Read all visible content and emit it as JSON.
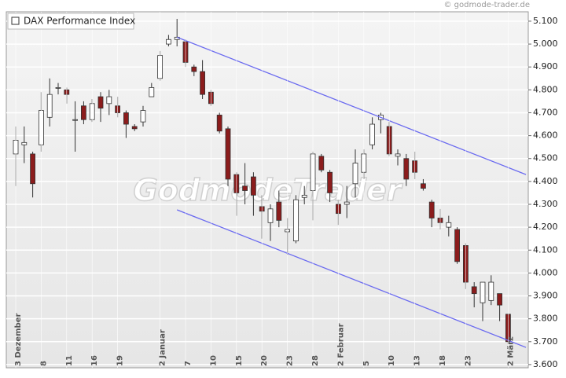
{
  "chart_data": {
    "type": "candlestick",
    "title": "DAX Performance Index",
    "source": "© godmode-trader.de",
    "watermark": "GodmodeTrader",
    "categories": [
      "3 Dezember",
      null,
      null,
      "8",
      null,
      null,
      "11",
      null,
      null,
      "16",
      null,
      null,
      "19",
      null,
      null,
      null,
      null,
      "2 Januar",
      null,
      null,
      "7",
      null,
      null,
      "10",
      null,
      null,
      "15",
      null,
      null,
      "20",
      null,
      null,
      "23",
      null,
      null,
      "28",
      null,
      null,
      "2 Februar",
      null,
      null,
      "5",
      null,
      null,
      "10",
      null,
      null,
      "13",
      null,
      null,
      "18",
      null,
      null,
      "23",
      null,
      null,
      null,
      null,
      "2 März"
    ],
    "open": [
      4520,
      4560,
      4520,
      4560,
      4680,
      4810,
      4800,
      4670,
      4730,
      4670,
      4770,
      4740,
      4730,
      4700,
      4640,
      4660,
      4770,
      4850,
      5000,
      5020,
      5010,
      4900,
      4880,
      4790,
      4690,
      4630,
      4430,
      4380,
      4420,
      4290,
      4220,
      4310,
      4180,
      4140,
      4330,
      4360,
      4510,
      4440,
      4300,
      4300,
      4390,
      4440,
      4560,
      4670,
      4640,
      4510,
      4500,
      4490,
      4390,
      4310,
      4240,
      4200,
      4190,
      4120,
      3940,
      3870,
      3880,
      3910,
      3820
    ],
    "high": [
      4640,
      4640,
      4530,
      4790,
      4850,
      4830,
      4810,
      4750,
      4750,
      4760,
      4790,
      4800,
      4770,
      4710,
      4650,
      4730,
      4830,
      4970,
      5040,
      5110,
      5020,
      4910,
      4930,
      4800,
      4700,
      4640,
      4440,
      4480,
      4440,
      4340,
      4300,
      4360,
      4240,
      4340,
      4380,
      4530,
      4520,
      4450,
      4320,
      4380,
      4540,
      4540,
      4680,
      4700,
      4660,
      4540,
      4520,
      4530,
      4410,
      4320,
      4280,
      4250,
      4200,
      4130,
      3960,
      3960,
      3990,
      3910,
      3820
    ],
    "low": [
      4380,
      4480,
      4330,
      4530,
      4640,
      4780,
      4740,
      4530,
      4650,
      4660,
      4660,
      4690,
      4680,
      4590,
      4620,
      4640,
      4770,
      4840,
      4990,
      4990,
      4900,
      4860,
      4760,
      4730,
      4610,
      4380,
      4250,
      4300,
      4250,
      4150,
      4140,
      4200,
      4080,
      4130,
      4300,
      4230,
      4440,
      4310,
      4210,
      4240,
      4330,
      4410,
      4540,
      4610,
      4510,
      4470,
      4380,
      4410,
      4360,
      4200,
      4190,
      4160,
      4040,
      3930,
      3850,
      3790,
      3860,
      3790,
      3690
    ],
    "close": [
      4580,
      4570,
      4390,
      4710,
      4780,
      4810,
      4780,
      4670,
      4670,
      4740,
      4720,
      4770,
      4700,
      4650,
      4630,
      4710,
      4810,
      4950,
      5020,
      5030,
      4920,
      4880,
      4780,
      4740,
      4620,
      4410,
      4350,
      4360,
      4340,
      4270,
      4280,
      4230,
      4190,
      4320,
      4340,
      4520,
      4450,
      4350,
      4260,
      4310,
      4480,
      4520,
      4650,
      4690,
      4520,
      4520,
      4410,
      4440,
      4370,
      4240,
      4220,
      4220,
      4050,
      3960,
      3910,
      3960,
      3960,
      3860,
      3700
    ],
    "up_color": "#ffffff",
    "down_color": "#8b1c1c",
    "trendlines": [
      {
        "color": "#6a6af0",
        "x": [
          19,
          60.1
        ],
        "values": [
          5030,
          4430
        ]
      },
      {
        "color": "#6a6af0",
        "x": [
          19,
          60.1
        ],
        "values": [
          4276,
          3675
        ]
      }
    ],
    "ylim": [
      3586,
      5141
    ],
    "yticks": [
      {
        "value": 3600,
        "label": "3.600"
      },
      {
        "value": 3700,
        "label": "3.700"
      },
      {
        "value": 3800,
        "label": "3.800"
      },
      {
        "value": 3900,
        "label": "3.900"
      },
      {
        "value": 4000,
        "label": "4.000"
      },
      {
        "value": 4100,
        "label": "4.100"
      },
      {
        "value": 4200,
        "label": "4.200"
      },
      {
        "value": 4300,
        "label": "4.300"
      },
      {
        "value": 4400,
        "label": "4.400"
      },
      {
        "value": 4500,
        "label": "4.500"
      },
      {
        "value": 4600,
        "label": "4.600"
      },
      {
        "value": 4700,
        "label": "4.700"
      },
      {
        "value": 4800,
        "label": "4.800"
      },
      {
        "value": 4900,
        "label": "4.900"
      },
      {
        "value": 5000,
        "label": "5.000"
      },
      {
        "value": 5100,
        "label": "5.100"
      }
    ],
    "grid": true
  }
}
